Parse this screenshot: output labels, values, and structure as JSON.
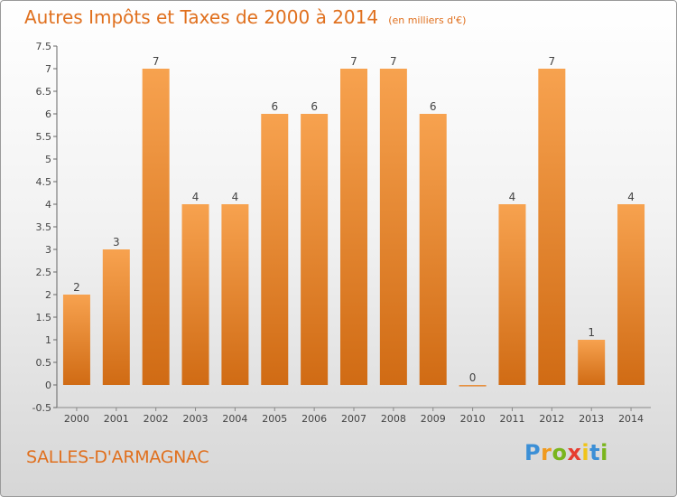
{
  "title": "Autres Impôts et Taxes de 2000 à 2014",
  "subtitle": "(en milliers d'€)",
  "city": "SALLES-D'ARMAGNAC",
  "logo": {
    "letters": [
      "P",
      "r",
      "o",
      "x",
      "i",
      "t",
      "i"
    ],
    "colors": [
      "#3b8fd6",
      "#f09a1e",
      "#7ab51d",
      "#e63c2f",
      "#f0c419",
      "#3b8fd6",
      "#7ab51d"
    ]
  },
  "colors": {
    "accent": "#e0701e",
    "bar_top": "#f7a24f",
    "bar_bottom": "#d06b14"
  },
  "chart_data": {
    "type": "bar",
    "categories": [
      "2000",
      "2001",
      "2002",
      "2003",
      "2004",
      "2005",
      "2006",
      "2007",
      "2008",
      "2009",
      "2010",
      "2011",
      "2012",
      "2013",
      "2014"
    ],
    "values": [
      2,
      3,
      7,
      4,
      4,
      6,
      6,
      7,
      7,
      6,
      0,
      4,
      7,
      1,
      4
    ],
    "ylim": [
      -0.5,
      7.5
    ],
    "yticks": [
      "-0.5",
      "0",
      "0.5",
      "1",
      "1.5",
      "2",
      "2.5",
      "3",
      "3.5",
      "4",
      "4.5",
      "5",
      "5.5",
      "6",
      "6.5",
      "7",
      "7.5"
    ],
    "ytick_values": [
      -0.5,
      0,
      0.5,
      1,
      1.5,
      2,
      2.5,
      3,
      3.5,
      4,
      4.5,
      5,
      5.5,
      6,
      6.5,
      7,
      7.5
    ],
    "grid": false
  }
}
